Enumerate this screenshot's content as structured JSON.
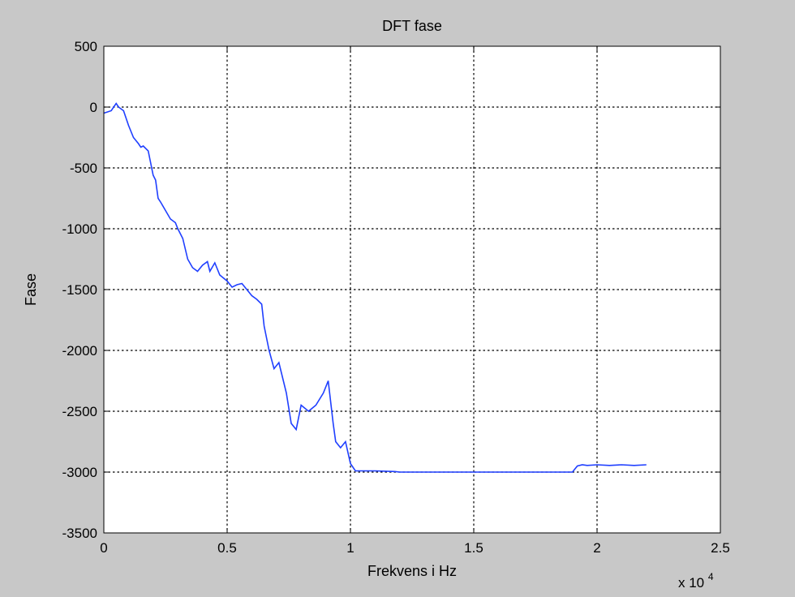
{
  "window": {
    "background": "#c8c8c8"
  },
  "chart_data": {
    "type": "line",
    "title": "DFT fase",
    "xlabel": "Frekvens i Hz",
    "ylabel": "Fase",
    "x_exponent_label": {
      "base": "x 10",
      "exponent": "4"
    },
    "xlim": [
      0,
      25000
    ],
    "ylim": [
      -3500,
      500
    ],
    "x_ticks": [
      0,
      5000,
      10000,
      15000,
      20000,
      25000
    ],
    "x_tick_labels": [
      "0",
      "0.5",
      "1",
      "1.5",
      "2",
      "2.5"
    ],
    "y_ticks": [
      500,
      0,
      -500,
      -1000,
      -1500,
      -2000,
      -2500,
      -3000,
      -3500
    ],
    "y_tick_labels": [
      "500",
      "0",
      "-500",
      "-1000",
      "-1500",
      "-2000",
      "-2500",
      "-3000",
      "-3500"
    ],
    "grid": true,
    "grid_style": "dotted",
    "colors": {
      "line": "#1f3fff",
      "plot_bg": "#ffffff",
      "grid": "#000000"
    },
    "series": [
      {
        "x": [
          0,
          300,
          500,
          600,
          800,
          1000,
          1200,
          1400,
          1500,
          1600,
          1800,
          2000,
          2100,
          2200,
          2300,
          2500,
          2700,
          2900,
          3000,
          3200,
          3400,
          3600,
          3800,
          4000,
          4200,
          4300,
          4500,
          4700,
          5000,
          5200,
          5400,
          5600,
          5800,
          6000,
          6200,
          6400,
          6500,
          6700,
          6900,
          7100,
          7400,
          7600,
          7800,
          8000,
          8300,
          8600,
          8900,
          9100,
          9300,
          9400,
          9600,
          9800,
          10000,
          10200,
          10400,
          11000,
          11800,
          12000,
          13000,
          15000,
          17000,
          19000,
          19200,
          19400,
          19600,
          20000,
          20500,
          21000,
          21500,
          22000
        ],
        "y": [
          -50,
          -30,
          30,
          0,
          -30,
          -150,
          -250,
          -300,
          -330,
          -320,
          -360,
          -560,
          -600,
          -750,
          -780,
          -850,
          -920,
          -950,
          -1000,
          -1080,
          -1250,
          -1320,
          -1350,
          -1300,
          -1270,
          -1350,
          -1280,
          -1380,
          -1430,
          -1480,
          -1460,
          -1450,
          -1500,
          -1550,
          -1580,
          -1620,
          -1800,
          -2000,
          -2150,
          -2100,
          -2350,
          -2600,
          -2650,
          -2450,
          -2500,
          -2450,
          -2350,
          -2250,
          -2600,
          -2750,
          -2800,
          -2750,
          -2930,
          -2990,
          -2990,
          -2990,
          -2995,
          -3000,
          -3000,
          -3000,
          -3000,
          -3000,
          -2950,
          -2940,
          -2945,
          -2940,
          -2945,
          -2940,
          -2945,
          -2940
        ]
      }
    ]
  }
}
